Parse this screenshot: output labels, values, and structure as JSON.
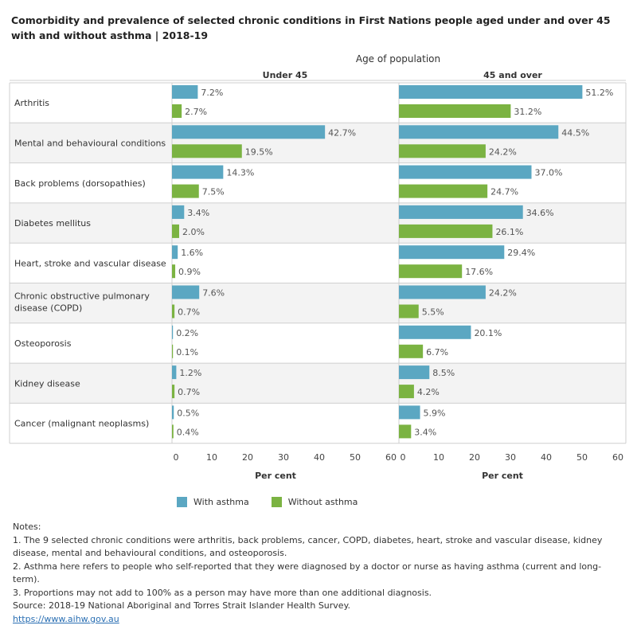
{
  "chart_data": {
    "type": "bar",
    "orientation": "horizontal",
    "title": "Comorbidity and prevalence of selected chronic conditions in First Nations people aged under and over 45 with and without asthma | 2018-19",
    "column_header": "Age of population",
    "xlabel": "Per cent",
    "xlim": [
      0,
      60
    ],
    "xticks": [
      0,
      10,
      20,
      30,
      40,
      50,
      60
    ],
    "categories": [
      "Arthritis",
      "Mental and behavioural conditions",
      "Back problems (dorsopathies)",
      "Diabetes mellitus",
      "Heart, stroke and vascular disease",
      "Chronic obstructive pulmonary disease (COPD)",
      "Osteoporosis",
      "Kidney disease",
      "Cancer (malignant neoplasms)"
    ],
    "panels": [
      {
        "name": "Under 45",
        "series": [
          {
            "name": "With asthma",
            "color": "#5ba7c2",
            "values": [
              7.2,
              42.7,
              14.3,
              3.4,
              1.6,
              7.6,
              0.2,
              1.2,
              0.5
            ]
          },
          {
            "name": "Without asthma",
            "color": "#7bb342",
            "values": [
              2.7,
              19.5,
              7.5,
              2.0,
              0.9,
              0.7,
              0.1,
              0.7,
              0.4
            ]
          }
        ]
      },
      {
        "name": "45 and over",
        "series": [
          {
            "name": "With asthma",
            "color": "#5ba7c2",
            "values": [
              51.2,
              44.5,
              37.0,
              34.6,
              29.4,
              24.2,
              20.1,
              8.5,
              5.9
            ]
          },
          {
            "name": "Without asthma",
            "color": "#7bb342",
            "values": [
              31.2,
              24.2,
              24.7,
              26.1,
              17.6,
              5.5,
              6.7,
              4.2,
              3.4
            ]
          }
        ]
      }
    ],
    "legend": [
      "With asthma",
      "Without asthma"
    ],
    "legend_position": "bottom"
  },
  "notes": {
    "heading": "Notes:",
    "items": [
      "1. The 9 selected chronic conditions were arthritis, back problems, cancer, COPD, diabetes, heart, stroke and vascular disease, kidney disease, mental and behavioural conditions, and osteoporosis.",
      "2. Asthma here refers to people who self-reported that they were diagnosed by a doctor or nurse as having asthma (current and long-term).",
      "3. Proportions may not add to 100% as a person may have more than one additional diagnosis."
    ],
    "source": "Source: 2018-19 National Aboriginal and Torres Strait Islander Health Survey.",
    "link": "https://www.aihw.gov.au"
  }
}
